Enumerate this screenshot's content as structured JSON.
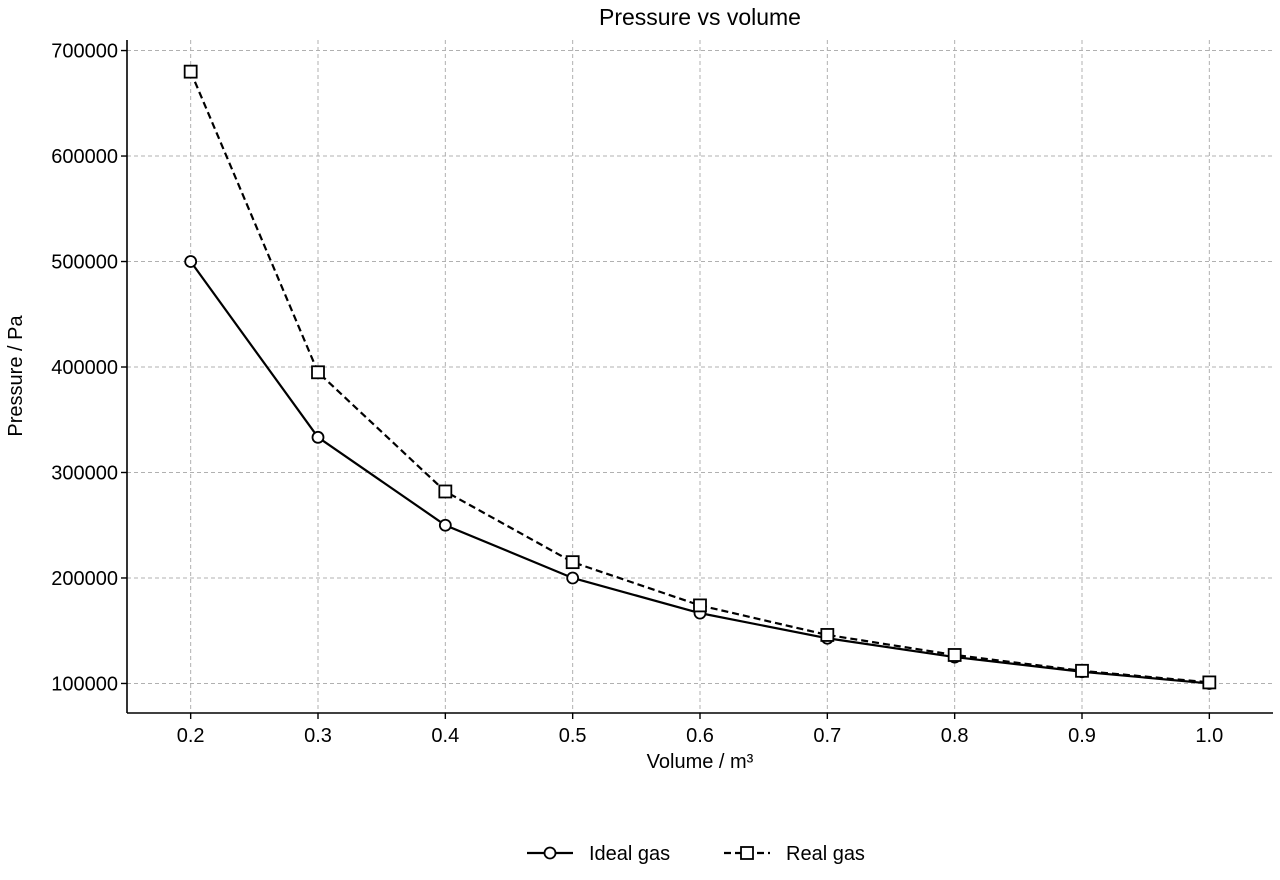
{
  "chart_data": {
    "type": "line",
    "title": "Pressure vs volume",
    "xlabel": "Volume / m³",
    "ylabel": "Pressure / Pa",
    "x": [
      0.2,
      0.3,
      0.4,
      0.5,
      0.6,
      0.7,
      0.8,
      0.9,
      1.0
    ],
    "xlim": [
      0.15,
      1.05
    ],
    "ylim": [
      72000,
      710000
    ],
    "xticks": [
      "0.2",
      "0.3",
      "0.4",
      "0.5",
      "0.6",
      "0.7",
      "0.8",
      "0.9",
      "1.0"
    ],
    "yticks": [
      "100000",
      "200000",
      "300000",
      "400000",
      "500000",
      "600000",
      "700000"
    ],
    "grid": true,
    "legend_position": "bottom-center",
    "series": [
      {
        "name": "Ideal gas",
        "values": [
          500000,
          333333,
          250000,
          200000,
          166667,
          142857,
          125000,
          111111,
          100000
        ],
        "line_style": "solid",
        "marker": "circle",
        "color": "#000000"
      },
      {
        "name": "Real gas",
        "values": [
          680000,
          395000,
          282000,
          215000,
          174000,
          146000,
          127000,
          112000,
          101000
        ],
        "line_style": "dashed",
        "marker": "square",
        "color": "#000000"
      }
    ]
  }
}
